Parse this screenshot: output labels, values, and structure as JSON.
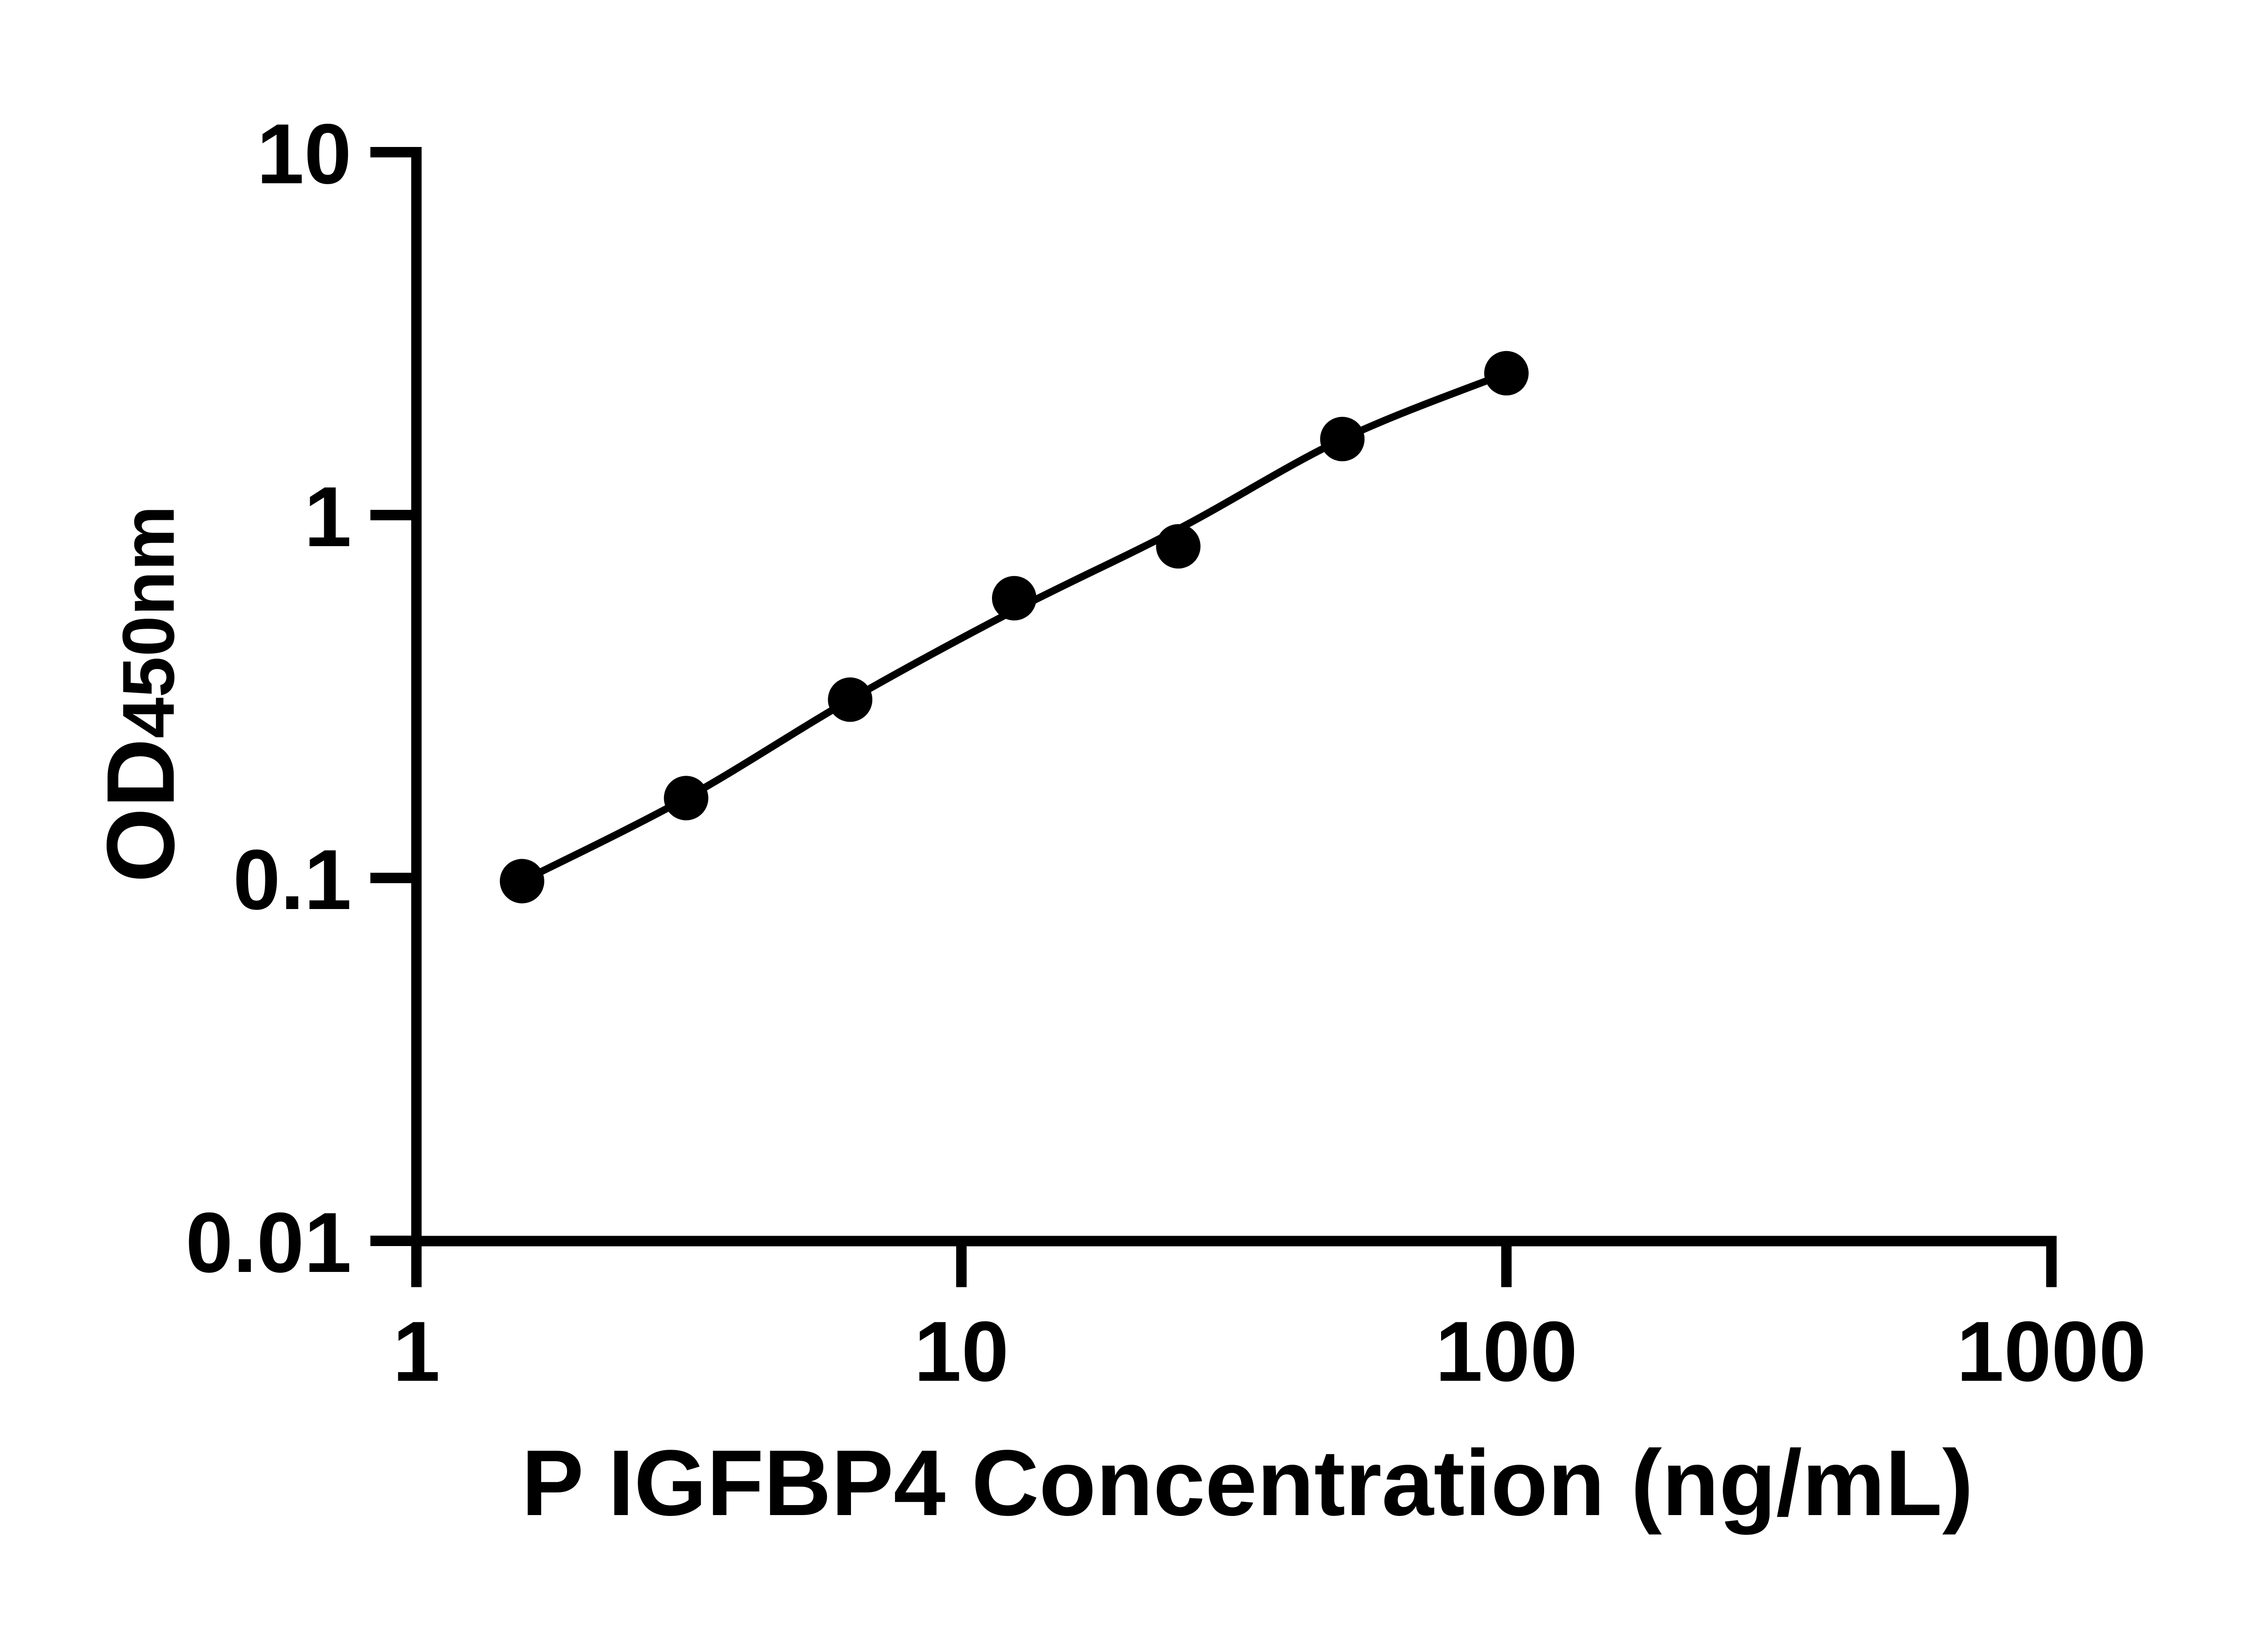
{
  "figure": {
    "background": "#ffffff",
    "ink": "#000000"
  },
  "chart_data": {
    "type": "scatter",
    "title": "",
    "xlabel": "P IGFBP4 Concentration (ng/mL)",
    "ylabel": "OD450nm",
    "ylabel_main": "OD",
    "ylabel_sub": "450nm",
    "x_scale": "log10",
    "y_scale": "log10",
    "xlim": [
      1,
      1000
    ],
    "ylim": [
      0.01,
      10
    ],
    "x_ticks": [
      1,
      10,
      100,
      1000
    ],
    "x_tick_labels": [
      "1",
      "10",
      "100",
      "1000"
    ],
    "y_ticks": [
      10,
      1,
      0.1,
      0.01
    ],
    "y_tick_labels": [
      "10",
      "1",
      "0.1",
      "0.01"
    ],
    "grid": false,
    "legend": "none",
    "series": [
      {
        "name": "standard-points",
        "kind": "scatter",
        "marker": "filled-circle",
        "color": "#000000",
        "x": [
          1.5625,
          3.125,
          6.25,
          12.5,
          25,
          50,
          100
        ],
        "y": [
          0.098,
          0.166,
          0.31,
          0.59,
          0.82,
          1.62,
          2.46
        ]
      },
      {
        "name": "fit-curve",
        "kind": "line",
        "color": "#000000",
        "x": [
          1.5625,
          3.125,
          6.25,
          12.5,
          25,
          50,
          100
        ],
        "y": [
          0.098,
          0.166,
          0.31,
          0.546,
          0.915,
          1.62,
          2.46
        ]
      }
    ]
  }
}
